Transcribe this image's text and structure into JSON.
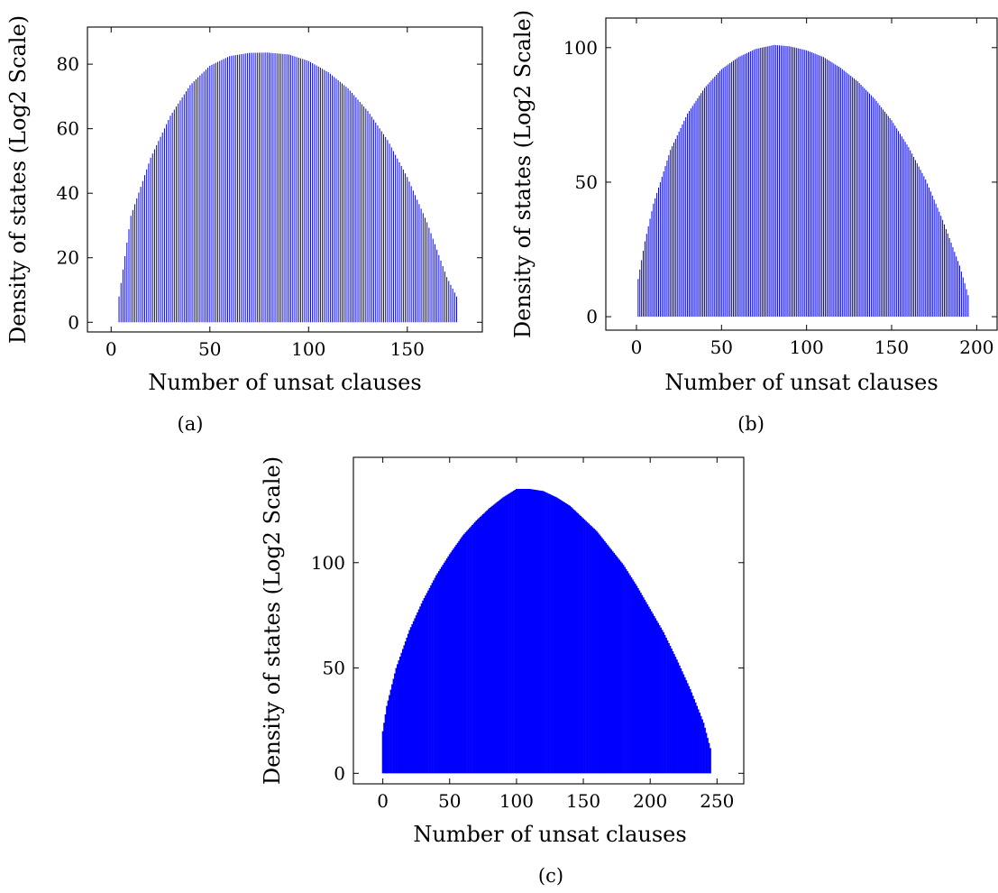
{
  "chart_data": [
    {
      "type": "bar",
      "caption": "(a)",
      "xlabel": "Number of unsat clauses",
      "ylabel": "Density of states (Log2 Scale)",
      "xlim": [
        -12,
        188
      ],
      "ylim": [
        -3,
        91.5
      ],
      "xticks": [
        0,
        50,
        100,
        150
      ],
      "yticks": [
        0,
        20,
        40,
        60,
        80
      ],
      "x": [
        4,
        10,
        20,
        30,
        40,
        50,
        60,
        70,
        79,
        90,
        100,
        110,
        120,
        130,
        140,
        150,
        160,
        170,
        175
      ],
      "values": [
        8,
        33,
        51,
        64,
        73.5,
        79.5,
        82.5,
        83.5,
        83.6,
        83,
        81,
        77.5,
        72.5,
        65.5,
        56.5,
        45,
        31,
        14,
        8
      ],
      "series": [
        {
          "name": "",
          "color": "#0000ff"
        }
      ]
    },
    {
      "type": "bar",
      "caption": "(b)",
      "xlabel": "Number of unsat clauses",
      "ylabel": "Density of states (Log2 Scale)",
      "xlim": [
        -18,
        212
      ],
      "ylim": [
        -5,
        111
      ],
      "xticks": [
        0,
        50,
        100,
        150,
        200
      ],
      "yticks": [
        0,
        50,
        100
      ],
      "x": [
        1,
        5,
        10,
        20,
        30,
        40,
        50,
        60,
        70,
        81,
        90,
        100,
        110,
        120,
        130,
        140,
        150,
        160,
        170,
        180,
        190,
        195
      ],
      "values": [
        14,
        28,
        42,
        62,
        75.5,
        85,
        92,
        96.5,
        99.5,
        101,
        100.5,
        99,
        96.5,
        92.5,
        87.5,
        81,
        73,
        63,
        51,
        36,
        19,
        8
      ],
      "series": [
        {
          "name": "",
          "color": "#0000ff"
        }
      ]
    },
    {
      "type": "bar",
      "caption": "(c)",
      "xlabel": "Number of unsat clauses",
      "ylabel": "Density of states (Log2 Scale)",
      "xlim": [
        -22,
        270
      ],
      "ylim": [
        -5,
        150
      ],
      "xticks": [
        0,
        50,
        100,
        150,
        200,
        250
      ],
      "yticks": [
        0,
        50,
        100
      ],
      "x": [
        0,
        3,
        10,
        20,
        30,
        40,
        50,
        60,
        70,
        80,
        90,
        100,
        110,
        120,
        130,
        140,
        150,
        160,
        170,
        180,
        190,
        200,
        210,
        220,
        230,
        240,
        245
      ],
      "values": [
        20,
        32,
        50,
        68,
        82,
        94,
        104,
        113,
        120,
        126,
        131,
        135,
        135,
        134,
        131,
        127,
        121,
        115,
        107,
        99,
        89,
        78,
        67,
        54,
        40,
        24,
        12
      ],
      "series": [
        {
          "name": "",
          "color": "#0000ff"
        }
      ]
    }
  ]
}
